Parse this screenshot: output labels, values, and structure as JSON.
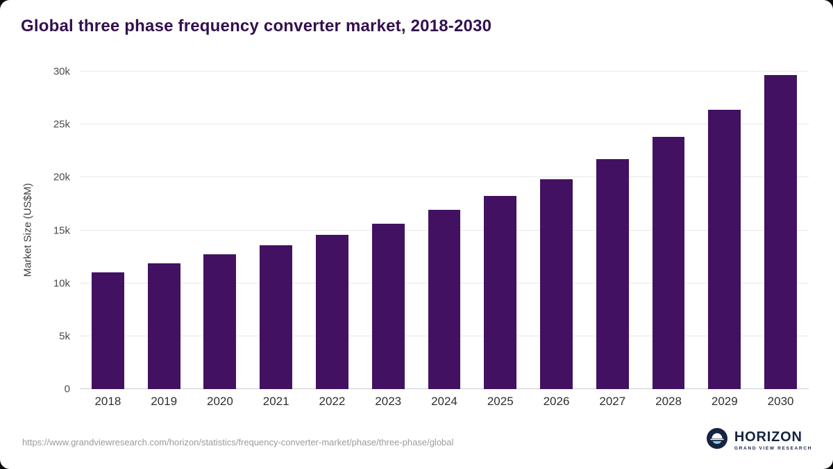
{
  "title": "Global three phase frequency converter market, 2018-2030",
  "footer": {
    "source_url": "https://www.grandviewresearch.com/horizon/statistics/frequency-converter-market/phase/three-phase/global",
    "brand_name": "HORIZON",
    "brand_subtitle": "GRAND VIEW RESEARCH"
  },
  "colors": {
    "bar": "#421161",
    "title": "#32104e",
    "grid": "#e8e8e8",
    "axis_text": "#4a4a4a",
    "footer_text": "#9b9b9b",
    "logo_navy": "#16243f",
    "logo_lightblue": "#8fd4f0"
  },
  "chart_data": {
    "type": "bar",
    "categories": [
      "2018",
      "2019",
      "2020",
      "2021",
      "2022",
      "2023",
      "2024",
      "2025",
      "2026",
      "2027",
      "2028",
      "2029",
      "2030"
    ],
    "values": [
      11000,
      11900,
      12750,
      13600,
      14600,
      15650,
      16950,
      18250,
      19850,
      21700,
      23800,
      26400,
      29700
    ],
    "title": "Global three phase frequency converter market, 2018-2030",
    "xlabel": "",
    "ylabel": "Market Size (US$M)",
    "ylim": [
      0,
      30000
    ],
    "yticks": [
      0,
      5000,
      10000,
      15000,
      20000,
      25000,
      30000
    ],
    "ytick_labels": [
      "0",
      "5k",
      "10k",
      "15k",
      "20k",
      "25k",
      "30k"
    ],
    "grid": "horizontal",
    "legend": "none",
    "bar_color": "#421161"
  }
}
